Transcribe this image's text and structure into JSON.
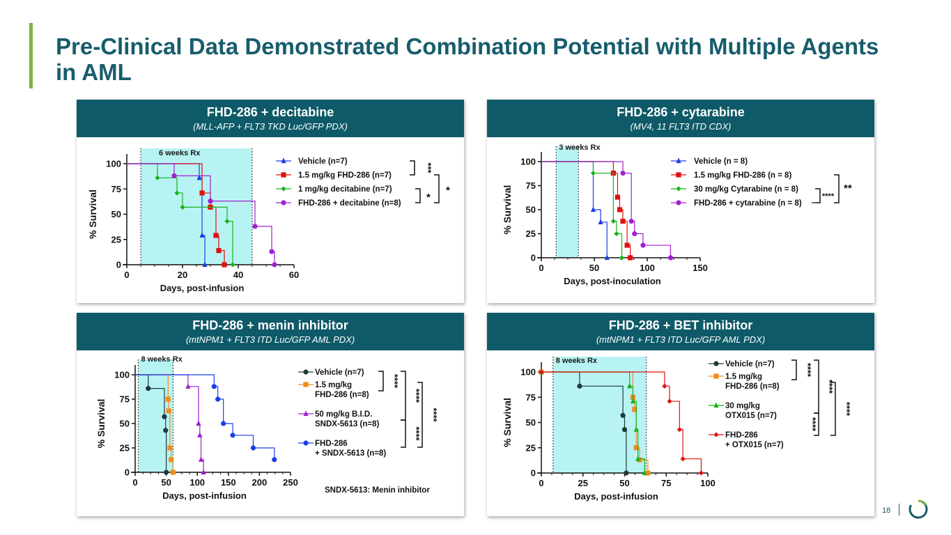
{
  "slide": {
    "title": "Pre-Clinical Data Demonstrated Combination Potential with Multiple Agents in AML",
    "page_number": "18",
    "accent_color": "#7cb342",
    "header_color": "#0e5a68",
    "title_color": "#175d6b"
  },
  "panels": [
    {
      "title": "FHD-286 + decitabine",
      "subtitle": "(MLL-AFP + FLT3 TKD Luc/GFP PDX)"
    },
    {
      "title": "FHD-286 + cytarabine",
      "subtitle": "(MV4, 11 FLT3 ITD CDX)"
    },
    {
      "title": "FHD-286 + menin inhibitor",
      "subtitle": "(mtNPM1 + FLT3 ITD Luc/GFP AML PDX)"
    },
    {
      "title": "FHD-286 + BET inhibitor",
      "subtitle": "(mtNPM1 + FLT3 ITD Luc/GFP AML PDX)"
    }
  ],
  "chart_data": [
    {
      "type": "line",
      "title": "FHD-286 + decitabine",
      "xlabel": "Days, post-infusion",
      "ylabel": "% Survival",
      "xlim": [
        0,
        60
      ],
      "ylim": [
        0,
        100
      ],
      "xticks": [
        0,
        20,
        40,
        60
      ],
      "yticks": [
        0,
        25,
        50,
        75,
        100
      ],
      "treatment_window": {
        "label": "6 weeks Rx",
        "start": 5,
        "end": 45
      },
      "series": [
        {
          "name": "Vehicle (n=7)",
          "color": "#1a3ee8",
          "marker": "triangle",
          "points": [
            [
              0,
              100
            ],
            [
              26,
              100
            ],
            [
              26,
              86
            ],
            [
              27,
              86
            ],
            [
              27,
              29
            ],
            [
              28,
              29
            ],
            [
              28,
              0
            ]
          ]
        },
        {
          "name": "1.5 mg/kg FHD-286 (n=7)",
          "color": "#e01010",
          "marker": "square",
          "points": [
            [
              0,
              100
            ],
            [
              27,
              100
            ],
            [
              27,
              71
            ],
            [
              30,
              71
            ],
            [
              30,
              57
            ],
            [
              32,
              57
            ],
            [
              32,
              29
            ],
            [
              33,
              29
            ],
            [
              33,
              14
            ],
            [
              35,
              14
            ],
            [
              35,
              0
            ]
          ]
        },
        {
          "name": "1 mg/kg decitabine (n=7)",
          "color": "#18b418",
          "marker": "diamond",
          "points": [
            [
              0,
              100
            ],
            [
              11,
              100
            ],
            [
              11,
              86
            ],
            [
              18,
              86
            ],
            [
              18,
              71
            ],
            [
              20,
              71
            ],
            [
              20,
              57
            ],
            [
              36,
              57
            ],
            [
              36,
              43
            ],
            [
              38,
              43
            ],
            [
              38,
              0
            ]
          ]
        },
        {
          "name": "FHD-286 + decitabine (n=8)",
          "color": "#a020d0",
          "marker": "circle",
          "points": [
            [
              0,
              100
            ],
            [
              17,
              100
            ],
            [
              17,
              88
            ],
            [
              30,
              88
            ],
            [
              30,
              63
            ],
            [
              46,
              63
            ],
            [
              46,
              38
            ],
            [
              52,
              38
            ],
            [
              52,
              13
            ],
            [
              53,
              13
            ],
            [
              53,
              0
            ]
          ]
        }
      ],
      "significance": [
        {
          "label": "***",
          "between": [
            "Vehicle (n=7)",
            "1.5 mg/kg FHD-286 (n=7)"
          ]
        },
        {
          "label": "*",
          "between": [
            "1 mg/kg decitabine (n=7)",
            "FHD-286 + decitabine (n=8)"
          ]
        },
        {
          "label": "*",
          "between": [
            "1.5 mg/kg FHD-286 (n=7)",
            "FHD-286 + decitabine (n=8)"
          ]
        }
      ]
    },
    {
      "type": "line",
      "title": "FHD-286 + cytarabine",
      "xlabel": "Days, post-inoculation",
      "ylabel": "% Survival",
      "xlim": [
        0,
        150
      ],
      "ylim": [
        0,
        100
      ],
      "xticks": [
        0,
        50,
        100,
        150
      ],
      "yticks": [
        0,
        25,
        50,
        75,
        100
      ],
      "treatment_window": {
        "label": "3 weeks Rx",
        "start": 14,
        "end": 35
      },
      "series": [
        {
          "name": "Vehicle (n = 8)",
          "color": "#1a3ee8",
          "marker": "triangle",
          "points": [
            [
              0,
              100
            ],
            [
              49,
              100
            ],
            [
              49,
              50
            ],
            [
              56,
              50
            ],
            [
              56,
              37
            ],
            [
              62,
              37
            ],
            [
              62,
              0
            ]
          ]
        },
        {
          "name": "1.5 mg/kg FHD-286 (n = 8)",
          "color": "#e01010",
          "marker": "square",
          "points": [
            [
              0,
              100
            ],
            [
              68,
              100
            ],
            [
              68,
              88
            ],
            [
              72,
              88
            ],
            [
              72,
              63
            ],
            [
              74,
              63
            ],
            [
              74,
              50
            ],
            [
              77,
              50
            ],
            [
              77,
              38
            ],
            [
              81,
              38
            ],
            [
              81,
              13
            ],
            [
              84,
              13
            ],
            [
              84,
              0
            ]
          ]
        },
        {
          "name": "30 mg/kg Cytarabine (n = 8)",
          "color": "#18b418",
          "marker": "diamond",
          "points": [
            [
              0,
              100
            ],
            [
              49,
              100
            ],
            [
              49,
              88
            ],
            [
              68,
              88
            ],
            [
              68,
              38
            ],
            [
              71,
              38
            ],
            [
              71,
              25
            ],
            [
              76,
              25
            ],
            [
              76,
              0
            ]
          ]
        },
        {
          "name": "FHD-286 + cytarabine (n = 8)",
          "color": "#a020d0",
          "marker": "circle",
          "points": [
            [
              0,
              100
            ],
            [
              77,
              100
            ],
            [
              77,
              88
            ],
            [
              85,
              88
            ],
            [
              85,
              38
            ],
            [
              88,
              38
            ],
            [
              88,
              25
            ],
            [
              96,
              25
            ],
            [
              96,
              13
            ],
            [
              122,
              13
            ],
            [
              122,
              0
            ]
          ]
        }
      ],
      "significance": [
        {
          "label": "**",
          "between": [
            "1.5 mg/kg FHD-286 (n = 8)",
            "FHD-286 + cytarabine (n = 8)"
          ]
        },
        {
          "label": "****",
          "between": [
            "30 mg/kg Cytarabine (n = 8)",
            "FHD-286 + cytarabine (n = 8)"
          ]
        }
      ]
    },
    {
      "type": "line",
      "title": "FHD-286 + menin inhibitor",
      "xlabel": "Days, post-infusion",
      "ylabel": "% Survival",
      "xlim": [
        0,
        250
      ],
      "ylim": [
        0,
        100
      ],
      "xticks": [
        0,
        50,
        100,
        150,
        200,
        250
      ],
      "yticks": [
        0,
        25,
        50,
        75,
        100
      ],
      "treatment_window": {
        "label": "8 weeks  Rx",
        "start": 5,
        "end": 61
      },
      "annotation": "SNDX-5613: Menin inhibitor",
      "series": [
        {
          "name": "Vehicle (n=7)",
          "name_lines": [
            "Vehicle (n=7)"
          ],
          "color": "#1f3a37",
          "marker": "circle",
          "points": [
            [
              0,
              100
            ],
            [
              21,
              100
            ],
            [
              21,
              86
            ],
            [
              47,
              86
            ],
            [
              47,
              57
            ],
            [
              49,
              57
            ],
            [
              49,
              43
            ],
            [
              50,
              43
            ],
            [
              50,
              0
            ]
          ]
        },
        {
          "name": "1.5 mg/kg FHD-286 (n=8)",
          "name_lines": [
            "1.5 mg/kg",
            "FHD-286 (n=8)"
          ],
          "color": "#f08c1e",
          "marker": "square",
          "points": [
            [
              0,
              100
            ],
            [
              53,
              100
            ],
            [
              53,
              75
            ],
            [
              54,
              75
            ],
            [
              54,
              63
            ],
            [
              56,
              63
            ],
            [
              56,
              25
            ],
            [
              58,
              25
            ],
            [
              58,
              13
            ],
            [
              61,
              13
            ],
            [
              61,
              0
            ]
          ]
        },
        {
          "name": "50 mg/kg B.I.D. SNDX-5613 (n=8)",
          "name_lines": [
            "50 mg/kg B.I.D.",
            "SNDX-5613 (n=8)"
          ],
          "color": "#a020d0",
          "marker": "triangle",
          "points": [
            [
              0,
              100
            ],
            [
              85,
              100
            ],
            [
              85,
              88
            ],
            [
              102,
              88
            ],
            [
              102,
              50
            ],
            [
              104,
              50
            ],
            [
              104,
              38
            ],
            [
              106,
              38
            ],
            [
              106,
              13
            ],
            [
              110,
              13
            ],
            [
              110,
              0
            ]
          ]
        },
        {
          "name": "FHD-286 + SNDX-5613 (n=8)",
          "name_lines": [
            "FHD-286",
            "+ SNDX-5613 (n=8)"
          ],
          "color": "#1a3ee8",
          "marker": "circle",
          "points": [
            [
              0,
              100
            ],
            [
              127,
              100
            ],
            [
              127,
              88
            ],
            [
              133,
              88
            ],
            [
              133,
              75
            ],
            [
              142,
              75
            ],
            [
              142,
              50
            ],
            [
              157,
              50
            ],
            [
              157,
              38
            ],
            [
              190,
              38
            ],
            [
              190,
              25
            ],
            [
              224,
              25
            ],
            [
              224,
              13
            ]
          ]
        }
      ],
      "significance": [
        {
          "label": "****",
          "between": [
            "Vehicle (n=7)",
            "1.5 mg/kg FHD-286 (n=8)"
          ]
        },
        {
          "label": "****",
          "between": [
            "Vehicle (n=7)",
            "50 mg/kg B.I.D. SNDX-5613 (n=8)"
          ]
        },
        {
          "label": "****",
          "between": [
            "1.5 mg/kg FHD-286 (n=8)",
            "FHD-286 + SNDX-5613 (n=8)"
          ]
        },
        {
          "label": "****",
          "between": [
            "50 mg/kg B.I.D. SNDX-5613 (n=8)",
            "FHD-286 + SNDX-5613 (n=8)"
          ]
        }
      ]
    },
    {
      "type": "line",
      "title": "FHD-286 + BET inhibitor",
      "xlabel": "Days, post-infusion",
      "ylabel": "% Survival",
      "xlim": [
        0,
        100
      ],
      "ylim": [
        0,
        100
      ],
      "xticks": [
        0,
        25,
        50,
        75,
        100
      ],
      "yticks": [
        0,
        25,
        50,
        75,
        100
      ],
      "treatment_window": {
        "label": "8 weeks  Rx",
        "start": 7,
        "end": 63
      },
      "series": [
        {
          "name": "Vehicle (n=7)",
          "name_lines": [
            "Vehicle (n=7)"
          ],
          "color": "#1f3a37",
          "marker": "circle",
          "points": [
            [
              0,
              100
            ],
            [
              23,
              100
            ],
            [
              23,
              86
            ],
            [
              49,
              86
            ],
            [
              49,
              57
            ],
            [
              50,
              57
            ],
            [
              50,
              43
            ],
            [
              51,
              43
            ],
            [
              51,
              0
            ]
          ]
        },
        {
          "name": "1.5 mg/kg FHD-286 (n=8)",
          "name_lines": [
            "1.5 mg/kg",
            "FHD-286 (n=8)"
          ],
          "color": "#f08c1e",
          "marker": "square",
          "points": [
            [
              0,
              100
            ],
            [
              55,
              100
            ],
            [
              55,
              75
            ],
            [
              56,
              75
            ],
            [
              56,
              63
            ],
            [
              57,
              63
            ],
            [
              57,
              25
            ],
            [
              59,
              25
            ],
            [
              59,
              13
            ],
            [
              64,
              13
            ],
            [
              64,
              0
            ]
          ]
        },
        {
          "name": "30 mg/kg OTX015 (n=7)",
          "name_lines": [
            "30 mg/kg",
            "OTX015 (n=7)"
          ],
          "color": "#18b418",
          "marker": "triangle",
          "points": [
            [
              0,
              100
            ],
            [
              53,
              100
            ],
            [
              53,
              86
            ],
            [
              55,
              86
            ],
            [
              55,
              71
            ],
            [
              57,
              71
            ],
            [
              57,
              43
            ],
            [
              58,
              43
            ],
            [
              58,
              14
            ],
            [
              62,
              14
            ],
            [
              62,
              0
            ]
          ]
        },
        {
          "name": "FHD-286 + OTX015 (n=7)",
          "name_lines": [
            "FHD-286",
            "+ OTX015 (n=7)"
          ],
          "color": "#e01010",
          "marker": "diamond",
          "points": [
            [
              0,
              100
            ],
            [
              74,
              100
            ],
            [
              74,
              86
            ],
            [
              77,
              86
            ],
            [
              77,
              71
            ],
            [
              83,
              71
            ],
            [
              83,
              43
            ],
            [
              85,
              43
            ],
            [
              85,
              14
            ],
            [
              96,
              14
            ],
            [
              96,
              0
            ]
          ]
        }
      ],
      "significance": [
        {
          "label": "****",
          "between": [
            "Vehicle (n=7)",
            "1.5 mg/kg FHD-286 (n=8)"
          ]
        },
        {
          "label": "****",
          "between": [
            "Vehicle (n=7)",
            "30 mg/kg OTX015 (n=7)"
          ]
        },
        {
          "label": "****",
          "between": [
            "1.5 mg/kg FHD-286 (n=8)",
            "FHD-286 + OTX015 (n=7)"
          ]
        },
        {
          "label": "****",
          "between": [
            "30 mg/kg OTX015 (n=7)",
            "FHD-286 + OTX015 (n=7)"
          ]
        }
      ]
    }
  ]
}
